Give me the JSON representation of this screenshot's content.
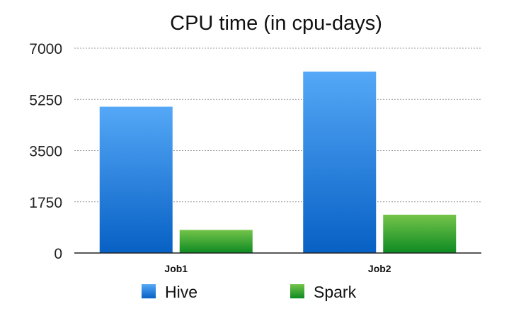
{
  "chart_data": {
    "type": "bar",
    "title": "CPU time (in cpu-days)",
    "xlabel": "",
    "ylabel": "",
    "categories": [
      "Job1",
      "Job2"
    ],
    "series": [
      {
        "name": "Hive",
        "values": [
          5000,
          6200
        ],
        "color": "#2a86e0"
      },
      {
        "name": "Spark",
        "values": [
          790,
          1310
        ],
        "color": "#3aa83a"
      }
    ],
    "ylim": [
      0,
      7000
    ],
    "yticks": [
      "0",
      "1750",
      "3500",
      "5250",
      "7000"
    ],
    "grid": true,
    "legend_position": "bottom"
  }
}
